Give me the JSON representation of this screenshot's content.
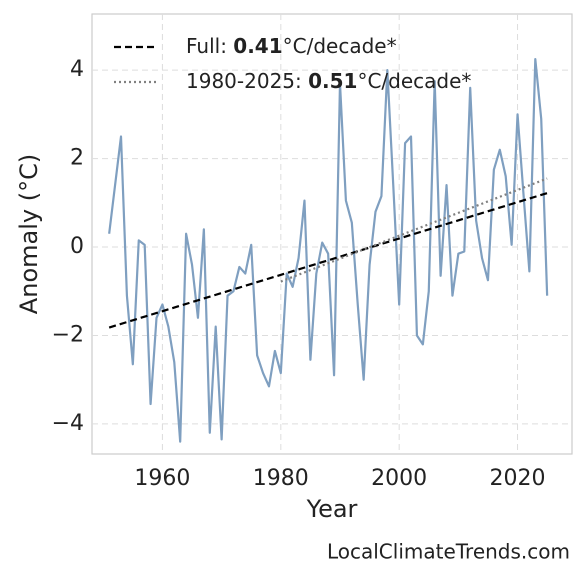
{
  "chart_data": {
    "type": "line",
    "x_label": "Year",
    "y_label": "Anomaly (°C)",
    "watermark": "LocalClimateTrends.com",
    "x": [
      1951,
      1952,
      1953,
      1954,
      1955,
      1956,
      1957,
      1958,
      1959,
      1960,
      1961,
      1962,
      1963,
      1964,
      1965,
      1966,
      1967,
      1968,
      1969,
      1970,
      1971,
      1972,
      1973,
      1974,
      1975,
      1976,
      1977,
      1978,
      1979,
      1980,
      1981,
      1982,
      1983,
      1984,
      1985,
      1986,
      1987,
      1988,
      1989,
      1990,
      1991,
      1992,
      1993,
      1994,
      1995,
      1996,
      1997,
      1998,
      1999,
      2000,
      2001,
      2002,
      2003,
      2004,
      2005,
      2006,
      2007,
      2008,
      2009,
      2010,
      2011,
      2012,
      2013,
      2014,
      2015,
      2016,
      2017,
      2018,
      2019,
      2020,
      2021,
      2022,
      2023,
      2024,
      2025
    ],
    "series": [
      {
        "color": "#7f9fc0",
        "values": [
          0.3,
          1.4,
          2.5,
          -1.1,
          -2.65,
          0.15,
          0.05,
          -3.55,
          -1.6,
          -1.3,
          -1.8,
          -2.6,
          -4.4,
          0.3,
          -0.4,
          -1.6,
          0.4,
          -4.2,
          -1.8,
          -4.35,
          -1.1,
          -1.0,
          -0.45,
          -0.6,
          0.05,
          -2.45,
          -2.85,
          -3.15,
          -2.35,
          -2.85,
          -0.6,
          -0.9,
          -0.25,
          1.05,
          -2.55,
          -0.6,
          0.1,
          -0.15,
          -2.9,
          3.7,
          1.05,
          0.55,
          -1.3,
          -3.0,
          -0.4,
          0.8,
          1.15,
          4.0,
          1.4,
          -1.3,
          2.35,
          2.5,
          -2.0,
          -2.2,
          -1.0,
          3.75,
          -0.65,
          1.4,
          -1.1,
          -0.15,
          -0.1,
          3.6,
          0.6,
          -0.25,
          -0.75,
          1.75,
          2.2,
          1.6,
          0.05,
          3.0,
          1.2,
          -0.55,
          4.25,
          2.9,
          -1.1
        ]
      },
      {
        "name": [
          "Full: ",
          "0.41",
          "°C/decade*"
        ],
        "color": "#000000",
        "dash": "7,4",
        "x": [
          1951,
          2025
        ],
        "values": [
          -1.82,
          1.22
        ]
      },
      {
        "name": [
          "1980-2025: ",
          "0.51",
          "°C/decade*"
        ],
        "color": "#808080",
        "dash": "2,3",
        "x": [
          1980,
          2025
        ],
        "values": [
          -0.78,
          1.55
        ]
      }
    ],
    "xlim": [
      1948.1,
      2029.2
    ],
    "xticks": [
      1960,
      1980,
      2000,
      2020
    ],
    "ylim": [
      -4.68,
      5.27
    ],
    "yticks": [
      {
        "value": -4,
        "label": "−4"
      },
      {
        "value": -2,
        "label": "−2"
      },
      0,
      2,
      4
    ],
    "grid": true
  }
}
